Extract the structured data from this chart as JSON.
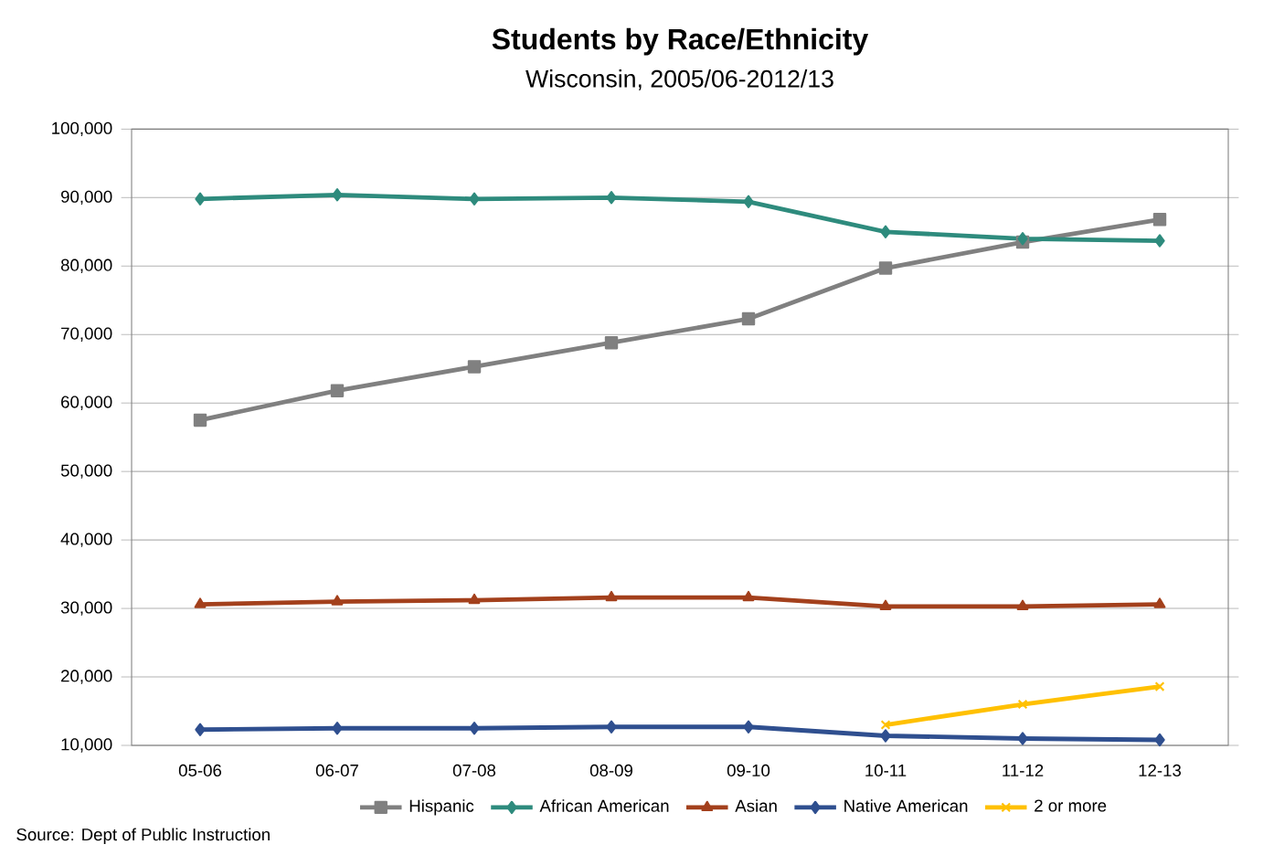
{
  "chart_data": {
    "type": "line",
    "title": "Students by Race/Ethnicity",
    "subtitle": "Wisconsin, 2005/06-2012/13",
    "categories": [
      "05-06",
      "06-07",
      "07-08",
      "08-09",
      "09-10",
      "10-11",
      "11-12",
      "12-13"
    ],
    "series": [
      {
        "name": "Hispanic",
        "color": "#808080",
        "marker": "square",
        "values": [
          57500,
          61800,
          65300,
          68800,
          72300,
          79700,
          83500,
          86800
        ]
      },
      {
        "name": "African American",
        "color": "#2e8b7d",
        "marker": "diamond",
        "values": [
          89800,
          90400,
          89800,
          90000,
          89400,
          85000,
          84000,
          83700
        ]
      },
      {
        "name": "Asian",
        "color": "#a3401c",
        "marker": "triangle",
        "values": [
          30600,
          31000,
          31200,
          31600,
          31600,
          30300,
          30300,
          30600
        ]
      },
      {
        "name": "Native American",
        "color": "#2f4f8f",
        "marker": "diamond",
        "values": [
          12300,
          12500,
          12500,
          12700,
          12700,
          11400,
          11000,
          10800
        ]
      },
      {
        "name": "2 or more",
        "color": "#ffc000",
        "marker": "cross",
        "values": [
          null,
          null,
          null,
          null,
          null,
          13000,
          16000,
          18600
        ]
      }
    ],
    "ylim": [
      10000,
      100000
    ],
    "yticks": [
      {
        "value": 10000,
        "label": "10,000"
      },
      {
        "value": 20000,
        "label": "20,000"
      },
      {
        "value": 30000,
        "label": "30,000"
      },
      {
        "value": 40000,
        "label": "40,000"
      },
      {
        "value": 50000,
        "label": "50,000"
      },
      {
        "value": 60000,
        "label": "60,000"
      },
      {
        "value": 70000,
        "label": "70,000"
      },
      {
        "value": 80000,
        "label": "80,000"
      },
      {
        "value": 90000,
        "label": "90,000"
      },
      {
        "value": 100000,
        "label": "100,000"
      }
    ],
    "grid": "y",
    "legend": "bottom",
    "line_style": "solid",
    "annotations": [
      "Source: Dept of Public Instruction"
    ]
  }
}
